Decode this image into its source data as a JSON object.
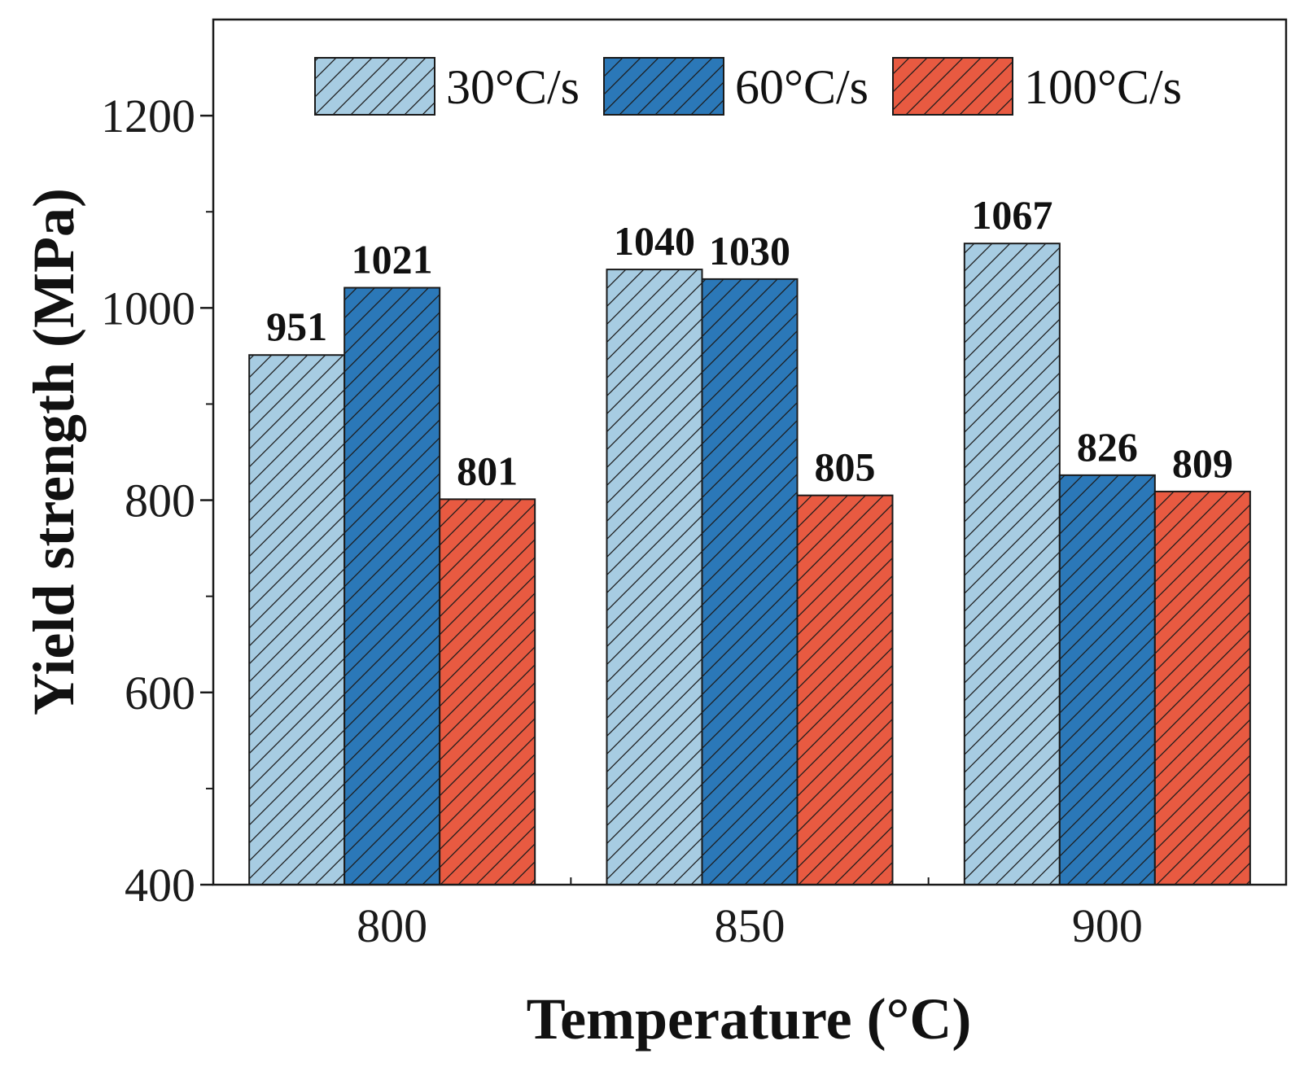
{
  "chart_data": {
    "type": "bar",
    "title": "",
    "xlabel": "Temperature (°C)",
    "ylabel": "Yield strength (MPa)",
    "categories": [
      "800",
      "850",
      "900"
    ],
    "ylim": [
      400,
      1300
    ],
    "yticks": [
      400,
      600,
      800,
      1000,
      1200
    ],
    "series": [
      {
        "name": "30°C/s",
        "values": [
          951,
          1040,
          1067
        ],
        "labels": [
          "951",
          "1040",
          "1067"
        ],
        "color": "#a7cce2"
      },
      {
        "name": "60°C/s",
        "values": [
          1021,
          1030,
          826
        ],
        "labels": [
          "1021",
          "1030",
          "826"
        ],
        "color": "#2b78b8"
      },
      {
        "name": "100°C/s",
        "values": [
          801,
          805,
          809
        ],
        "labels": [
          "801",
          "805",
          "809"
        ],
        "color": "#e85a41"
      }
    ],
    "legend": "top-center",
    "grid": false,
    "pattern": "diagonal-hatch"
  }
}
